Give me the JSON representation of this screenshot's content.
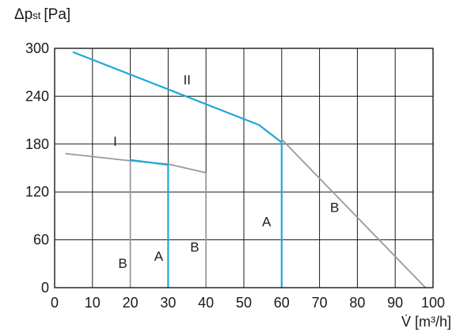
{
  "chart_data": {
    "type": "line",
    "ylabel": {
      "main": "Δp",
      "sub": "st",
      "unit": "[Pa]"
    },
    "xlabel": "V̇ [m³/h]",
    "xlim": [
      0,
      100
    ],
    "ylim": [
      0,
      300
    ],
    "xticks": [
      0,
      10,
      20,
      30,
      40,
      50,
      60,
      70,
      80,
      90,
      100
    ],
    "yticks": [
      0,
      60,
      120,
      180,
      240,
      300
    ],
    "grid": true,
    "series": [
      {
        "name": "I",
        "color": "#9a9a9a",
        "points": [
          [
            3,
            168
          ],
          [
            20,
            159
          ],
          [
            30,
            155
          ],
          [
            40,
            144
          ],
          [
            40,
            0
          ]
        ]
      },
      {
        "name": "I",
        "color": "#9a9a9a",
        "points": [
          [
            20,
            159
          ],
          [
            20,
            0
          ]
        ]
      },
      {
        "name": "I",
        "color": "#1fa8d8",
        "points": [
          [
            20,
            160
          ],
          [
            30,
            154
          ],
          [
            30,
            0
          ]
        ]
      },
      {
        "name": "II",
        "color": "#1fa8d8",
        "points": [
          [
            5,
            295
          ],
          [
            54,
            204
          ],
          [
            60,
            182
          ],
          [
            60,
            0
          ]
        ]
      },
      {
        "name": "II",
        "color": "#9a9a9a",
        "points": [
          [
            60,
            186
          ],
          [
            98,
            0
          ]
        ]
      }
    ],
    "annotations": [
      {
        "text": "II",
        "x": 35,
        "y": 255
      },
      {
        "text": "I",
        "x": 16,
        "y": 178
      },
      {
        "text": "B",
        "x": 18,
        "y": 25
      },
      {
        "text": "A",
        "x": 27.5,
        "y": 34
      },
      {
        "text": "B",
        "x": 37,
        "y": 45
      },
      {
        "text": "A",
        "x": 56,
        "y": 77
      },
      {
        "text": "B",
        "x": 74,
        "y": 95
      }
    ]
  }
}
